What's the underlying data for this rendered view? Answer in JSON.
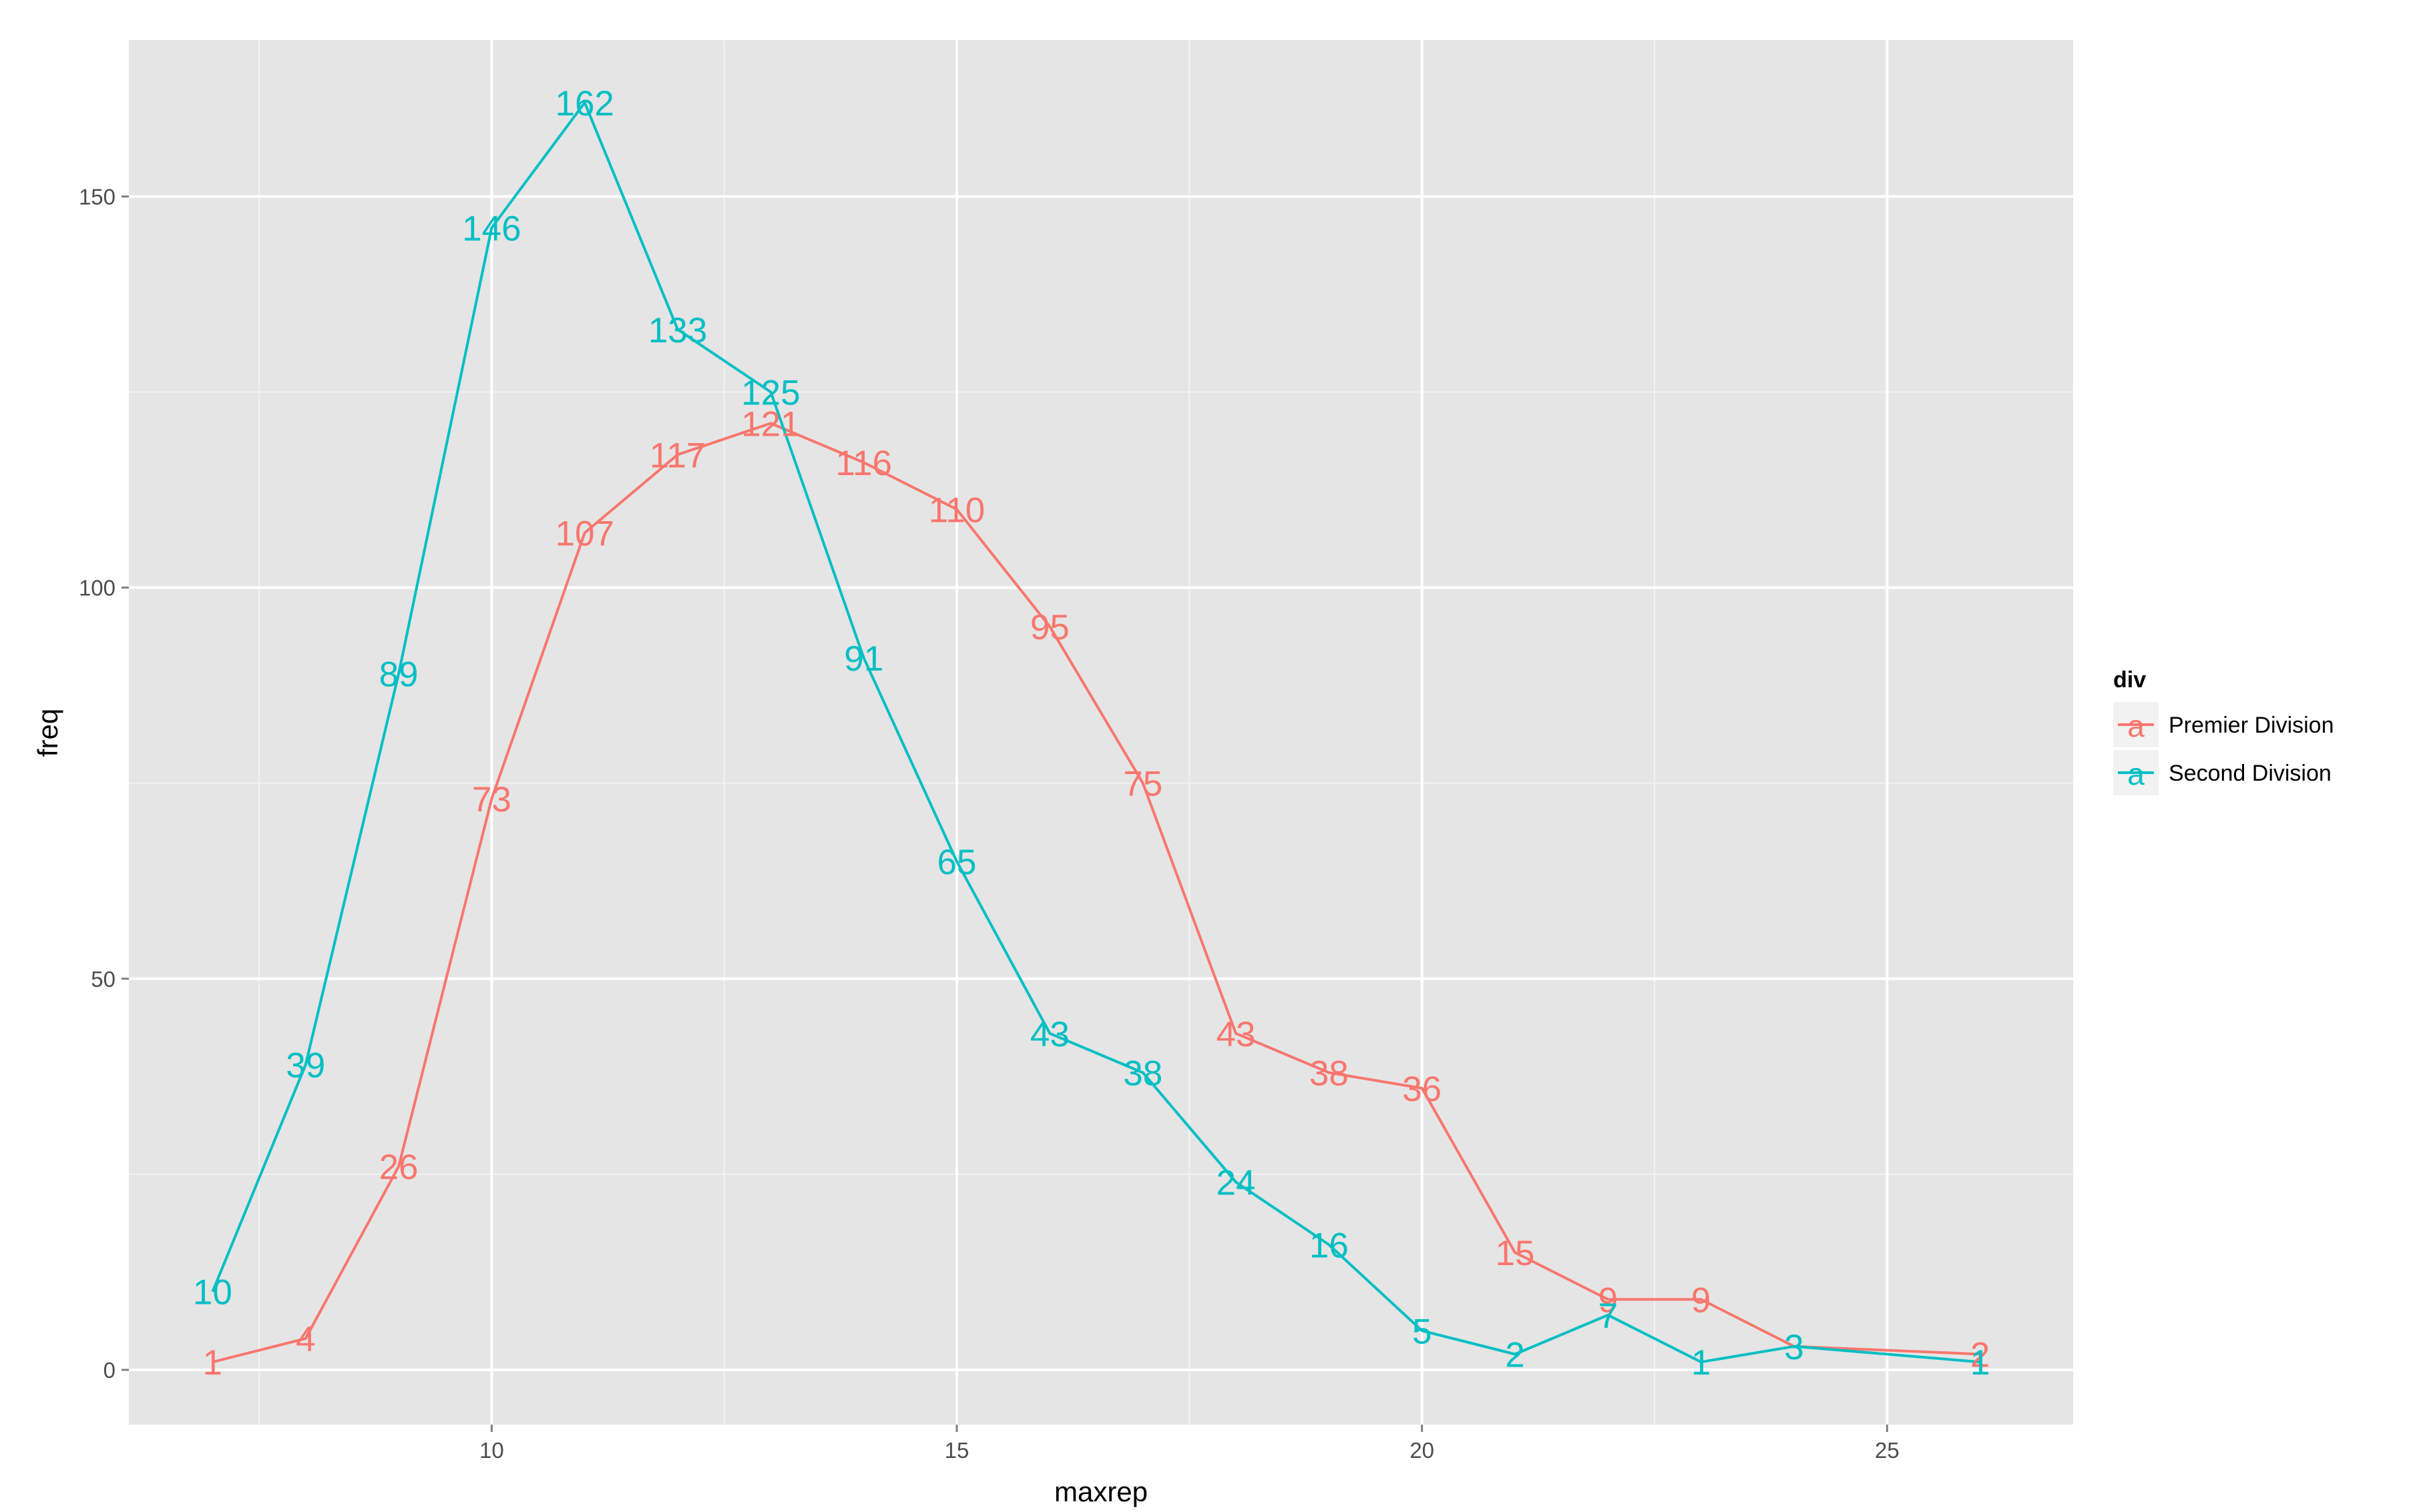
{
  "chart_data": {
    "type": "line",
    "title": "",
    "xlabel": "maxrep",
    "ylabel": "freq",
    "xlim": [
      6.1,
      27.0
    ],
    "ylim": [
      -7,
      170
    ],
    "x_ticks": [
      10,
      15,
      20,
      25
    ],
    "x_tick_labels": [
      "10",
      "15",
      "20",
      "25"
    ],
    "y_ticks": [
      0,
      50,
      100,
      150
    ],
    "y_tick_labels": [
      "0",
      "50",
      "100",
      "150"
    ],
    "grid": true,
    "legend": {
      "title": "div",
      "position": "right",
      "glyph": "a"
    },
    "series": [
      {
        "name": "Premier Division",
        "color": "#F8766D",
        "x": [
          7,
          8,
          9,
          10,
          11,
          12,
          13,
          14,
          15,
          16,
          17,
          18,
          19,
          20,
          21,
          22,
          23,
          24,
          26
        ],
        "values": [
          1,
          4,
          26,
          73,
          107,
          117,
          121,
          116,
          110,
          95,
          75,
          43,
          38,
          36,
          15,
          9,
          9,
          3,
          2
        ],
        "labels": [
          "1",
          "4",
          "26",
          "73",
          "107",
          "117",
          "121",
          "116",
          "110",
          "95",
          "75",
          "43",
          "38",
          "36",
          "15",
          "9",
          "9",
          "3",
          "2"
        ],
        "label_visible": [
          true,
          true,
          true,
          true,
          true,
          true,
          true,
          true,
          true,
          true,
          true,
          true,
          true,
          true,
          true,
          true,
          true,
          false,
          true
        ]
      },
      {
        "name": "Second Division",
        "color": "#00BFC4",
        "x": [
          7,
          8,
          9,
          10,
          11,
          12,
          13,
          14,
          15,
          16,
          17,
          18,
          19,
          20,
          21,
          22,
          23,
          24,
          26
        ],
        "values": [
          10,
          39,
          89,
          146,
          162,
          133,
          125,
          91,
          65,
          43,
          38,
          24,
          16,
          5,
          2,
          7,
          1,
          3,
          1
        ],
        "labels": [
          "10",
          "39",
          "89",
          "146",
          "162",
          "133",
          "125",
          "91",
          "65",
          "43",
          "38",
          "24",
          "16",
          "5",
          "2",
          "7",
          "1",
          "3",
          "1"
        ],
        "label_visible": [
          true,
          true,
          true,
          true,
          true,
          true,
          true,
          true,
          true,
          true,
          true,
          true,
          true,
          true,
          true,
          true,
          true,
          true,
          true
        ]
      }
    ]
  }
}
